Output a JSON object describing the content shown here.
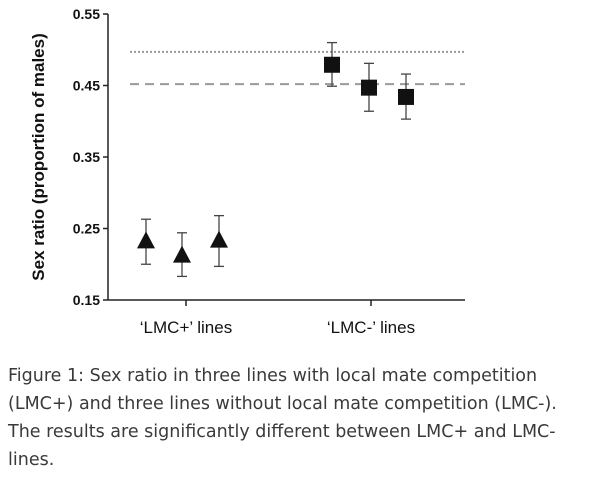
{
  "chart_data": {
    "type": "scatter",
    "ylabel": "Sex ratio (proportion of males)",
    "ylim": [
      0.15,
      0.55
    ],
    "yticks": [
      "0.15",
      "0.25",
      "0.35",
      "0.45",
      "0.55"
    ],
    "categories": [
      "‘LMC+’ lines",
      "‘LMC-’ lines"
    ],
    "series": [
      {
        "category": "‘LMC+’ lines",
        "marker": "triangle",
        "points": [
          {
            "y": 0.232,
            "lo": 0.2,
            "hi": 0.263
          },
          {
            "y": 0.212,
            "lo": 0.183,
            "hi": 0.244
          },
          {
            "y": 0.233,
            "lo": 0.197,
            "hi": 0.268
          }
        ]
      },
      {
        "category": "‘LMC-’ lines",
        "marker": "square",
        "points": [
          {
            "y": 0.479,
            "lo": 0.449,
            "hi": 0.51
          },
          {
            "y": 0.447,
            "lo": 0.414,
            "hi": 0.481
          },
          {
            "y": 0.434,
            "lo": 0.403,
            "hi": 0.466
          }
        ]
      }
    ],
    "reference_lines": [
      {
        "y": 0.497,
        "style": "dotted"
      },
      {
        "y": 0.452,
        "style": "dashed"
      }
    ],
    "grid": false,
    "legend": "none"
  },
  "caption": "Figure 1: Sex ratio in three lines with local mate competition (LMC+) and three lines without local mate competition (LMC-). The results are significantly different between LMC+ and LMC- lines."
}
